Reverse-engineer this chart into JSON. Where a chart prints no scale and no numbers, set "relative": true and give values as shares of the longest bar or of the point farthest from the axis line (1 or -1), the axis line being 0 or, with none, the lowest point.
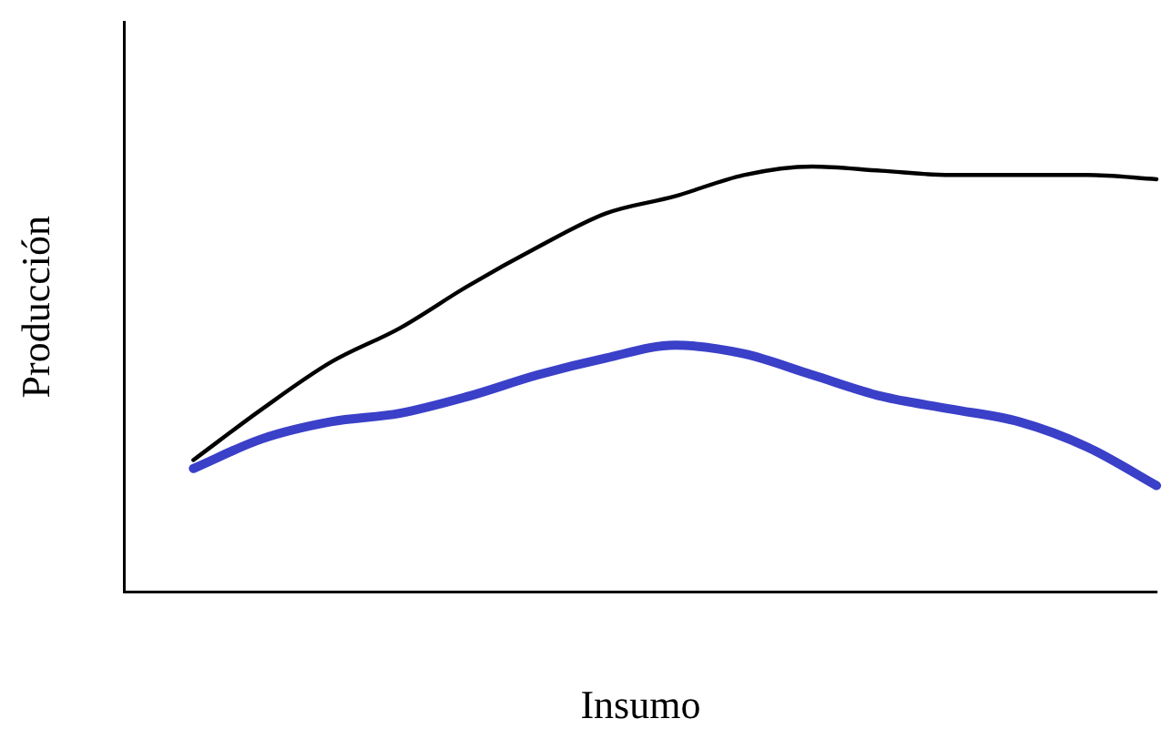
{
  "chart_data": {
    "type": "line",
    "relative": true,
    "xlabel": "Insumo",
    "ylabel": "Producción",
    "grid": false,
    "legend": false,
    "marker": "none",
    "line_style": "solid",
    "categories": [
      null,
      null,
      null,
      null,
      null,
      null,
      null,
      null,
      null,
      null,
      null,
      null,
      null,
      null,
      null,
      null
    ],
    "series": [
      {
        "color": "#000000",
        "values": [
          null,
          0.31,
          0.43,
          0.54,
          0.62,
          0.72,
          0.81,
          0.89,
          0.93,
          0.98,
          1,
          0.99,
          0.98,
          0.98,
          0.98,
          0.97
        ]
      },
      {
        "color": "#3a40c8",
        "values": [
          null,
          0.29,
          0.36,
          0.4,
          0.42,
          0.46,
          0.51,
          0.55,
          0.58,
          0.56,
          0.51,
          0.46,
          0.43,
          0.4,
          0.34,
          0.25
        ]
      }
    ]
  }
}
